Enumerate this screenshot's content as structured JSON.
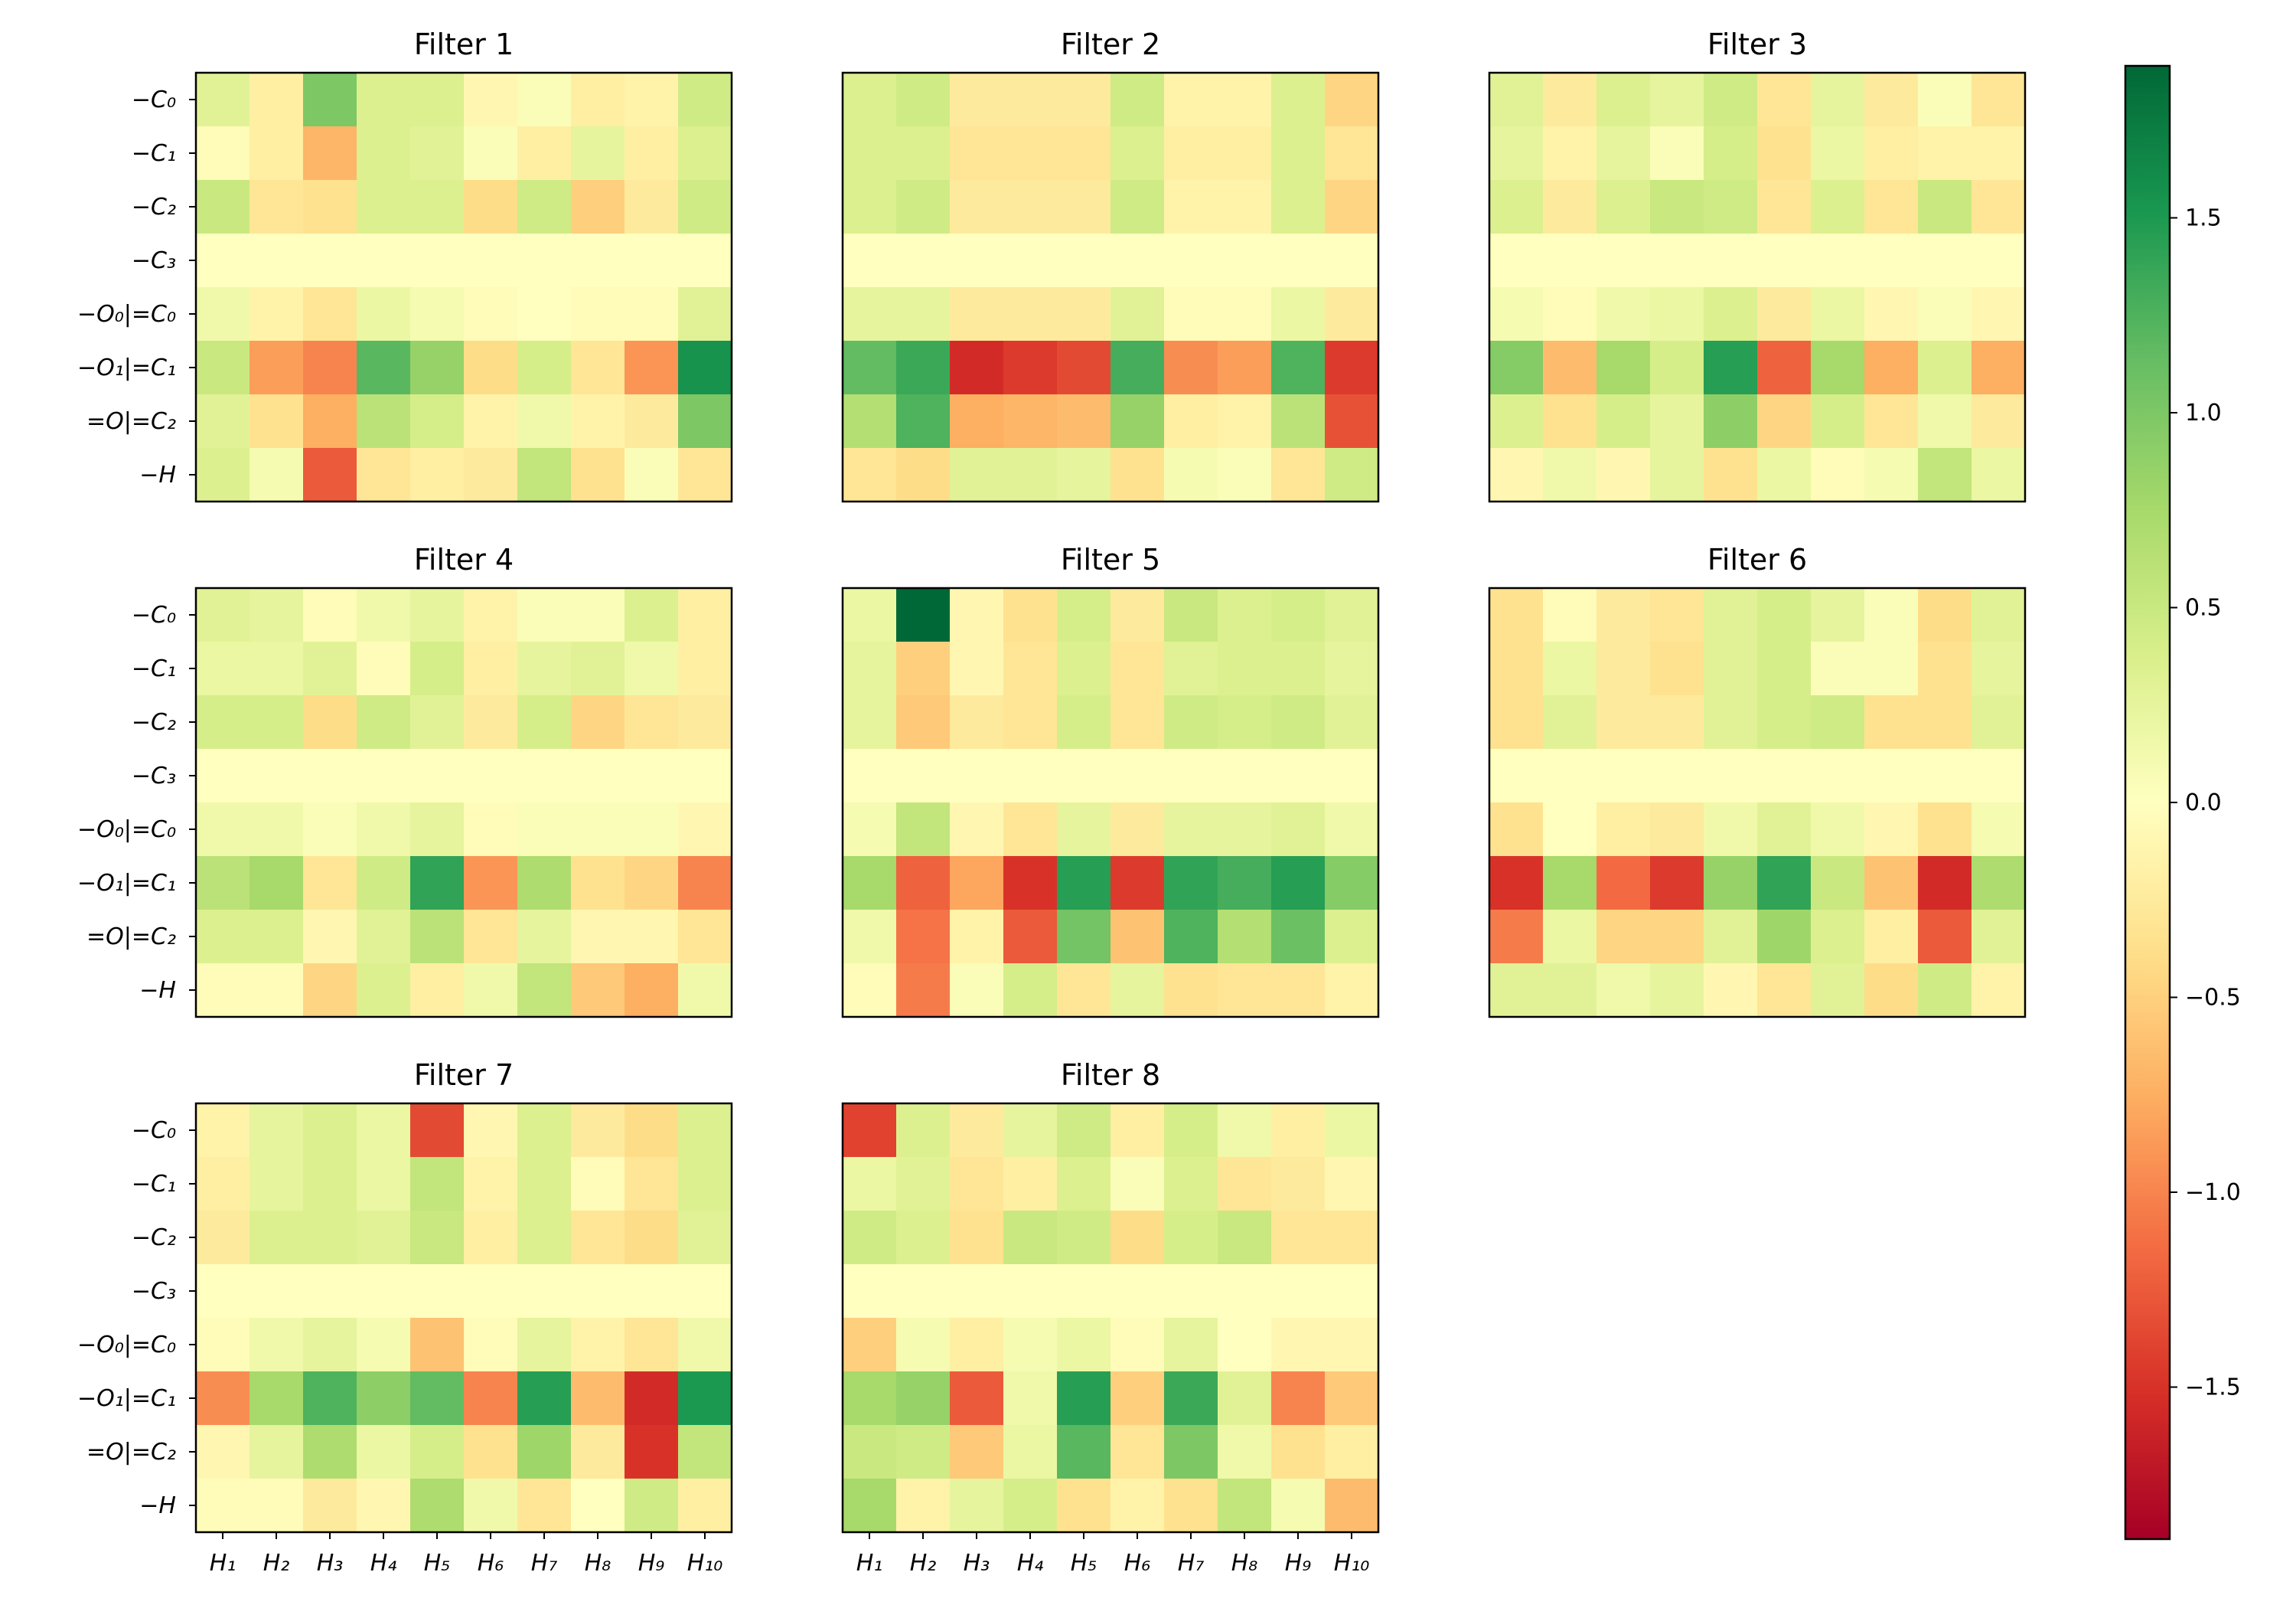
{
  "chart_data": {
    "type": "heatmap",
    "colormap": "RdYlGn",
    "vmin": -1.89,
    "vmax": 1.89,
    "row_labels": [
      "−C₀",
      "−C₁",
      "−C₂",
      "−C₃",
      "−O₀|=C₀",
      "−O₁|=C₁",
      "=O|=C₂",
      "−H"
    ],
    "col_labels": [
      "H₁",
      "H₂",
      "H₃",
      "H₄",
      "H₅",
      "H₆",
      "H₇",
      "H₈",
      "H₉",
      "H₁₀"
    ],
    "colorbar": {
      "ticks": [
        1.5,
        1.0,
        0.5,
        0.0,
        -0.5,
        -1.0,
        -1.5
      ],
      "tick_labels": [
        "1.5",
        "1.0",
        "0.5",
        "0.0",
        "−0.5",
        "−1.0",
        "−1.5"
      ]
    },
    "panels": [
      {
        "title": "Filter 1",
        "values": [
          [
            0.3,
            -0.2,
            1.0,
            0.35,
            0.35,
            -0.1,
            0.05,
            -0.2,
            -0.15,
            0.45
          ],
          [
            -0.05,
            -0.2,
            -0.7,
            0.35,
            0.3,
            0.05,
            -0.2,
            0.25,
            -0.2,
            0.35
          ],
          [
            0.5,
            -0.3,
            -0.35,
            0.35,
            0.35,
            -0.4,
            0.45,
            -0.5,
            -0.25,
            0.45
          ],
          [
            0.0,
            0.0,
            0.0,
            0.0,
            0.0,
            0.0,
            0.0,
            0.0,
            0.0,
            0.0
          ],
          [
            0.15,
            -0.15,
            -0.3,
            0.2,
            0.1,
            -0.05,
            0.0,
            -0.05,
            -0.05,
            0.3
          ],
          [
            0.5,
            -0.85,
            -1.0,
            1.2,
            0.85,
            -0.4,
            0.4,
            -0.3,
            -0.9,
            1.55
          ],
          [
            0.3,
            -0.35,
            -0.75,
            0.6,
            0.4,
            -0.15,
            0.15,
            -0.15,
            -0.25,
            1.0
          ],
          [
            0.35,
            0.1,
            -1.25,
            -0.3,
            -0.2,
            -0.25,
            0.55,
            -0.35,
            0.05,
            -0.3
          ]
        ]
      },
      {
        "title": "Filter 2",
        "values": [
          [
            0.35,
            0.45,
            -0.25,
            -0.25,
            -0.25,
            0.45,
            -0.15,
            -0.15,
            0.35,
            -0.45
          ],
          [
            0.35,
            0.35,
            -0.3,
            -0.3,
            -0.3,
            0.35,
            -0.2,
            -0.2,
            0.35,
            -0.3
          ],
          [
            0.35,
            0.45,
            -0.25,
            -0.25,
            -0.25,
            0.45,
            -0.15,
            -0.15,
            0.35,
            -0.45
          ],
          [
            0.0,
            0.0,
            0.0,
            0.0,
            0.0,
            0.0,
            0.0,
            0.0,
            0.0,
            0.0
          ],
          [
            0.25,
            0.25,
            -0.25,
            -0.25,
            -0.25,
            0.3,
            -0.05,
            -0.05,
            0.2,
            -0.25
          ],
          [
            1.15,
            1.35,
            -1.55,
            -1.45,
            -1.35,
            1.3,
            -0.95,
            -0.85,
            1.25,
            -1.45
          ],
          [
            0.65,
            1.25,
            -0.75,
            -0.7,
            -0.65,
            0.85,
            -0.2,
            -0.15,
            0.6,
            -1.3
          ],
          [
            -0.3,
            -0.4,
            0.3,
            0.3,
            0.25,
            -0.35,
            0.1,
            0.05,
            -0.3,
            0.45
          ]
        ]
      },
      {
        "title": "Filter 3",
        "values": [
          [
            0.3,
            -0.25,
            0.35,
            0.25,
            0.45,
            -0.3,
            0.25,
            -0.25,
            0.05,
            -0.3
          ],
          [
            0.25,
            -0.15,
            0.25,
            0.05,
            0.4,
            -0.35,
            0.2,
            -0.2,
            -0.15,
            -0.15
          ],
          [
            0.35,
            -0.25,
            0.35,
            0.5,
            0.45,
            -0.3,
            0.35,
            -0.3,
            0.5,
            -0.3
          ],
          [
            0.0,
            0.0,
            0.0,
            0.0,
            0.0,
            0.0,
            0.0,
            0.0,
            0.0,
            0.0
          ],
          [
            0.1,
            -0.05,
            0.15,
            0.2,
            0.35,
            -0.25,
            0.2,
            -0.1,
            0.05,
            -0.1
          ],
          [
            0.95,
            -0.65,
            0.75,
            0.4,
            1.45,
            -1.2,
            0.75,
            -0.75,
            0.35,
            -0.75
          ],
          [
            0.35,
            -0.35,
            0.4,
            0.25,
            0.9,
            -0.45,
            0.4,
            -0.3,
            0.15,
            -0.25
          ],
          [
            -0.1,
            0.15,
            -0.1,
            0.25,
            -0.35,
            0.2,
            -0.05,
            0.1,
            0.55,
            0.2
          ]
        ]
      },
      {
        "title": "Filter 4",
        "values": [
          [
            0.3,
            0.25,
            -0.05,
            0.15,
            0.25,
            -0.15,
            0.05,
            0.05,
            0.35,
            -0.2
          ],
          [
            0.2,
            0.2,
            0.3,
            -0.05,
            0.4,
            -0.2,
            0.25,
            0.3,
            0.15,
            -0.2
          ],
          [
            0.4,
            0.4,
            -0.4,
            0.45,
            0.3,
            -0.25,
            0.4,
            -0.45,
            -0.3,
            -0.25
          ],
          [
            0.0,
            0.0,
            0.0,
            0.0,
            0.0,
            0.0,
            0.0,
            0.0,
            0.0,
            0.0
          ],
          [
            0.15,
            0.15,
            0.05,
            0.15,
            0.25,
            -0.05,
            0.05,
            0.05,
            0.05,
            -0.1
          ],
          [
            0.6,
            0.75,
            -0.3,
            0.45,
            1.4,
            -0.9,
            0.7,
            -0.35,
            -0.45,
            -1.0
          ],
          [
            0.35,
            0.35,
            -0.1,
            0.3,
            0.6,
            -0.3,
            0.25,
            -0.1,
            -0.1,
            -0.3
          ],
          [
            -0.05,
            -0.05,
            -0.45,
            0.35,
            -0.2,
            0.15,
            0.55,
            -0.55,
            -0.75,
            0.15
          ]
        ]
      },
      {
        "title": "Filter 5",
        "values": [
          [
            0.2,
            1.89,
            -0.1,
            -0.35,
            0.4,
            -0.25,
            0.5,
            0.35,
            0.4,
            0.3
          ],
          [
            0.25,
            -0.5,
            -0.1,
            -0.3,
            0.35,
            -0.3,
            0.3,
            0.35,
            0.35,
            0.25
          ],
          [
            0.25,
            -0.55,
            -0.25,
            -0.3,
            0.4,
            -0.3,
            0.45,
            0.4,
            0.45,
            0.3
          ],
          [
            0.0,
            0.0,
            0.0,
            0.0,
            0.0,
            0.0,
            0.0,
            0.0,
            0.0,
            0.0
          ],
          [
            0.1,
            0.55,
            -0.1,
            -0.3,
            0.25,
            -0.25,
            0.25,
            0.25,
            0.3,
            0.15
          ],
          [
            0.75,
            -1.2,
            -0.8,
            -1.5,
            1.45,
            -1.45,
            1.4,
            1.3,
            1.45,
            0.95
          ],
          [
            0.15,
            -1.1,
            -0.15,
            -1.25,
            1.05,
            -0.6,
            1.25,
            0.65,
            1.1,
            0.35
          ],
          [
            -0.05,
            -1.05,
            0.05,
            0.4,
            -0.3,
            0.25,
            -0.35,
            -0.3,
            -0.3,
            -0.15
          ]
        ]
      },
      {
        "title": "Filter 6",
        "values": [
          [
            -0.35,
            -0.05,
            -0.25,
            -0.3,
            0.3,
            0.4,
            0.25,
            0.05,
            -0.4,
            0.3
          ],
          [
            -0.35,
            0.2,
            -0.25,
            -0.35,
            0.3,
            0.4,
            0.05,
            0.05,
            -0.35,
            0.25
          ],
          [
            -0.35,
            0.3,
            -0.25,
            -0.25,
            0.3,
            0.4,
            0.45,
            -0.35,
            -0.35,
            0.3
          ],
          [
            0.0,
            0.0,
            0.0,
            0.0,
            0.0,
            0.0,
            0.0,
            0.0,
            0.0,
            0.0
          ],
          [
            -0.35,
            0.0,
            -0.2,
            -0.25,
            0.15,
            0.3,
            0.15,
            -0.1,
            -0.35,
            0.1
          ],
          [
            -1.5,
            0.75,
            -1.15,
            -1.45,
            0.85,
            1.4,
            0.5,
            -0.6,
            -1.55,
            0.7
          ],
          [
            -1.05,
            0.2,
            -0.45,
            -0.45,
            0.3,
            0.8,
            0.35,
            -0.2,
            -1.25,
            0.3
          ],
          [
            0.3,
            0.3,
            0.15,
            0.25,
            -0.1,
            -0.3,
            0.3,
            -0.4,
            0.45,
            -0.15
          ]
        ]
      },
      {
        "title": "Filter 7",
        "values": [
          [
            -0.15,
            0.25,
            0.35,
            0.2,
            -1.35,
            -0.1,
            0.35,
            -0.25,
            -0.4,
            0.35
          ],
          [
            -0.2,
            0.25,
            0.35,
            0.2,
            0.55,
            -0.15,
            0.35,
            -0.05,
            -0.3,
            0.35
          ],
          [
            -0.25,
            0.35,
            0.35,
            0.3,
            0.5,
            -0.2,
            0.35,
            -0.3,
            -0.4,
            0.3
          ],
          [
            0.0,
            0.0,
            0.0,
            0.0,
            0.0,
            0.0,
            0.0,
            0.0,
            0.0,
            0.0
          ],
          [
            -0.05,
            0.15,
            0.25,
            0.1,
            -0.6,
            -0.05,
            0.25,
            -0.15,
            -0.3,
            0.15
          ],
          [
            -0.95,
            0.75,
            1.25,
            0.9,
            1.15,
            -1.0,
            1.45,
            -0.65,
            -1.55,
            1.5
          ],
          [
            -0.1,
            0.25,
            0.7,
            0.2,
            0.4,
            -0.35,
            0.8,
            -0.25,
            -1.5,
            0.55
          ],
          [
            -0.05,
            -0.05,
            -0.25,
            -0.1,
            0.7,
            0.15,
            -0.3,
            0.0,
            0.45,
            -0.2
          ]
        ]
      },
      {
        "title": "Filter 8",
        "values": [
          [
            -1.4,
            0.35,
            -0.25,
            0.25,
            0.45,
            -0.2,
            0.4,
            0.15,
            -0.2,
            0.2
          ],
          [
            0.2,
            0.3,
            -0.3,
            -0.2,
            0.35,
            0.05,
            0.35,
            -0.3,
            -0.25,
            -0.1
          ],
          [
            0.45,
            0.35,
            -0.35,
            0.5,
            0.45,
            -0.4,
            0.4,
            0.5,
            -0.3,
            -0.3
          ],
          [
            0.0,
            0.0,
            0.0,
            0.0,
            0.0,
            0.0,
            0.0,
            0.0,
            0.0,
            0.0
          ],
          [
            -0.5,
            0.1,
            -0.2,
            0.1,
            0.2,
            -0.05,
            0.25,
            0.0,
            -0.1,
            -0.1
          ],
          [
            0.75,
            0.85,
            -1.25,
            0.15,
            1.45,
            -0.5,
            1.35,
            0.3,
            -1.0,
            -0.55
          ],
          [
            0.5,
            0.45,
            -0.55,
            0.2,
            1.2,
            -0.3,
            1.0,
            0.15,
            -0.35,
            -0.2
          ],
          [
            0.75,
            -0.15,
            0.25,
            0.4,
            -0.35,
            -0.15,
            -0.35,
            0.55,
            0.1,
            -0.65
          ]
        ]
      }
    ]
  }
}
